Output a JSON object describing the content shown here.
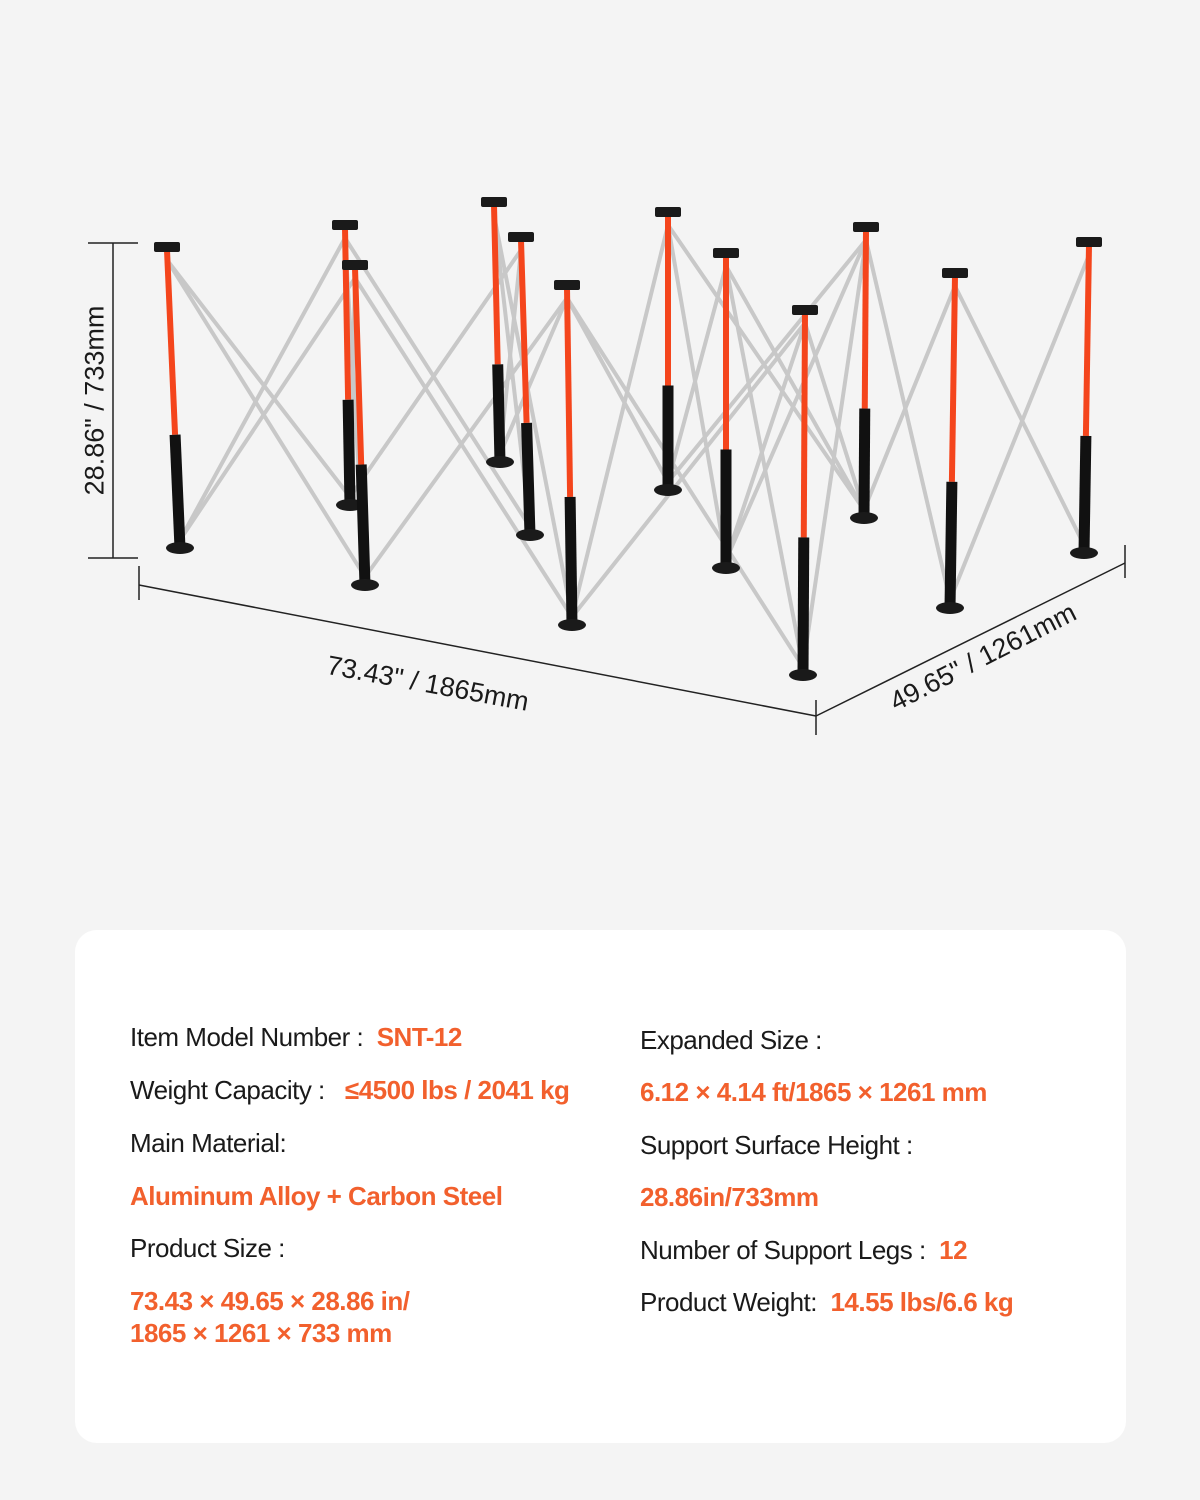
{
  "dimensions": {
    "height": "28.86\" / 733mm",
    "length": "73.43\" / 1865mm",
    "width": "49.65\" / 1261mm"
  },
  "colors": {
    "accent": "#f2602d",
    "leg_upper": "#f4451c",
    "leg_lower": "#111111",
    "brace": "#c8c8c8",
    "background": "#f4f4f4",
    "card": "#ffffff"
  },
  "specs": {
    "model_label": "Item Model Number :",
    "model_value": "SNT-12",
    "capacity_label": "Weight Capacity :",
    "capacity_value": "≤4500 lbs / 2041 kg",
    "material_label": "Main Material:",
    "material_value": "Aluminum Alloy + Carbon Steel",
    "product_size_label": "Product Size :",
    "product_size_value_1": "73.43 × 49.65 × 28.86 in/",
    "product_size_value_2": "1865 × 1261 × 733 mm",
    "expanded_label": "Expanded Size :",
    "expanded_value": "6.12 × 4.14 ft/1865 ×  1261 mm",
    "height_label": "Support Surface Height :",
    "height_value": "28.86in/733mm",
    "legs_label": "Number of Support Legs :",
    "legs_value": "12",
    "weight_label": "Product Weight:",
    "weight_value": "14.55 lbs/6.6 kg"
  }
}
